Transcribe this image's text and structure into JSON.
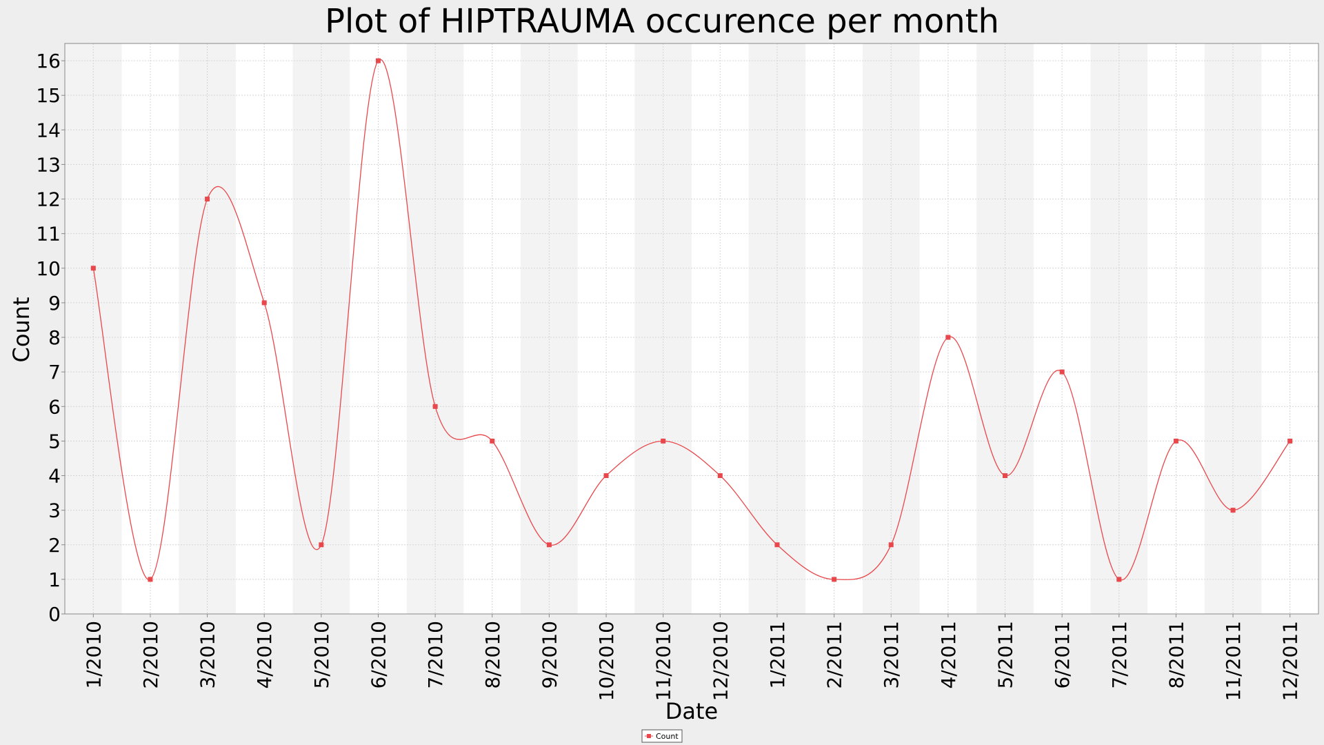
{
  "chart_data": {
    "type": "line",
    "title": "Plot of HIPTRAUMA occurence per month",
    "xlabel": "Date",
    "ylabel": "Count",
    "ylim": [
      0,
      16.5
    ],
    "yticks": [
      0,
      1,
      2,
      3,
      4,
      5,
      6,
      7,
      8,
      9,
      10,
      11,
      12,
      13,
      14,
      15,
      16
    ],
    "categories": [
      "1/2010",
      "2/2010",
      "3/2010",
      "4/2010",
      "5/2010",
      "6/2010",
      "7/2010",
      "8/2010",
      "9/2010",
      "10/2010",
      "11/2010",
      "12/2010",
      "1/2011",
      "2/2011",
      "3/2011",
      "4/2011",
      "5/2011",
      "6/2011",
      "7/2011",
      "8/2011",
      "11/2011",
      "12/2011"
    ],
    "series": [
      {
        "name": "Count",
        "values": [
          10,
          1,
          12,
          9,
          2,
          16,
          6,
          5,
          2,
          4,
          5,
          4,
          2,
          1,
          2,
          8,
          4,
          7,
          1,
          5,
          3,
          5
        ],
        "color": "#e8474b"
      }
    ],
    "grid": true,
    "alternating_bands": true,
    "legend": "bottom-center",
    "background": "#eeeeee",
    "plot_background": "#ffffff",
    "band_color": "#f3f3f3"
  }
}
